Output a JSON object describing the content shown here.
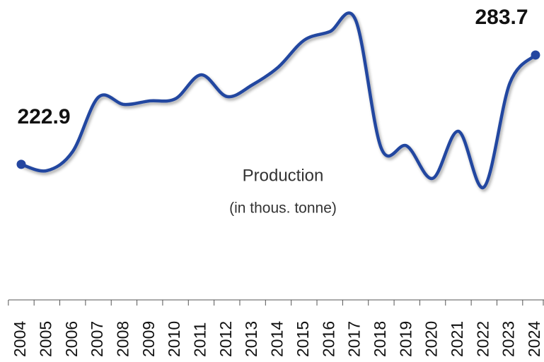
{
  "chart_data": {
    "type": "line",
    "title": "Production",
    "subtitle": "(in thous. tonne)",
    "categories": [
      "2004",
      "2005",
      "2006",
      "2007",
      "2008",
      "2009",
      "2010",
      "2011",
      "2012",
      "2013",
      "2014",
      "2015",
      "2016",
      "2017",
      "2018",
      "2019",
      "2020",
      "2021",
      "2022",
      "2023",
      "2024"
    ],
    "series": [
      {
        "name": "Production",
        "color": "#2446a0",
        "values": [
          222.9,
          219.4,
          230.0,
          260.2,
          256.2,
          258.2,
          259.4,
          272.7,
          260.6,
          267.2,
          277.0,
          291.9,
          296.7,
          303.3,
          231.9,
          233.1,
          215.1,
          241.3,
          210.3,
          268.0,
          283.7
        ]
      }
    ]
  }
}
